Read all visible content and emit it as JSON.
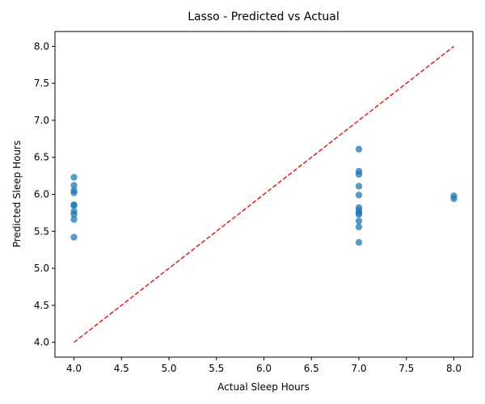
{
  "chart_data": {
    "type": "scatter",
    "title": "Lasso - Predicted vs Actual",
    "xlabel": "Actual Sleep Hours",
    "ylabel": "Predicted Sleep Hours",
    "xlim": [
      3.8,
      8.2
    ],
    "ylim": [
      3.8,
      8.2
    ],
    "xticks": [
      "4.0",
      "4.5",
      "5.0",
      "5.5",
      "6.0",
      "6.5",
      "7.0",
      "7.5",
      "8.0"
    ],
    "yticks": [
      "4.0",
      "4.5",
      "5.0",
      "5.5",
      "6.0",
      "6.5",
      "7.0",
      "7.5",
      "8.0"
    ],
    "grid": false,
    "points": [
      {
        "x": 4,
        "y": 6.23
      },
      {
        "x": 4,
        "y": 6.12
      },
      {
        "x": 4,
        "y": 6.05
      },
      {
        "x": 4,
        "y": 6.02
      },
      {
        "x": 4,
        "y": 5.86
      },
      {
        "x": 4,
        "y": 5.85
      },
      {
        "x": 4,
        "y": 5.77
      },
      {
        "x": 4,
        "y": 5.73
      },
      {
        "x": 4,
        "y": 5.66
      },
      {
        "x": 4,
        "y": 5.42
      },
      {
        "x": 7,
        "y": 6.61
      },
      {
        "x": 7,
        "y": 6.31
      },
      {
        "x": 7,
        "y": 6.27
      },
      {
        "x": 7,
        "y": 6.11
      },
      {
        "x": 7,
        "y": 5.99
      },
      {
        "x": 7,
        "y": 5.82
      },
      {
        "x": 7,
        "y": 5.78
      },
      {
        "x": 7,
        "y": 5.75
      },
      {
        "x": 7,
        "y": 5.73
      },
      {
        "x": 7,
        "y": 5.64
      },
      {
        "x": 7,
        "y": 5.56
      },
      {
        "x": 7,
        "y": 5.35
      },
      {
        "x": 8,
        "y": 5.98
      },
      {
        "x": 8,
        "y": 5.94
      }
    ],
    "reference_line": {
      "x": [
        4,
        8
      ],
      "y": [
        4,
        8
      ],
      "style": "dashed"
    },
    "colors": {
      "point": "#1f77b4",
      "reference_line": "#e41a1c",
      "axis": "#000000"
    }
  }
}
